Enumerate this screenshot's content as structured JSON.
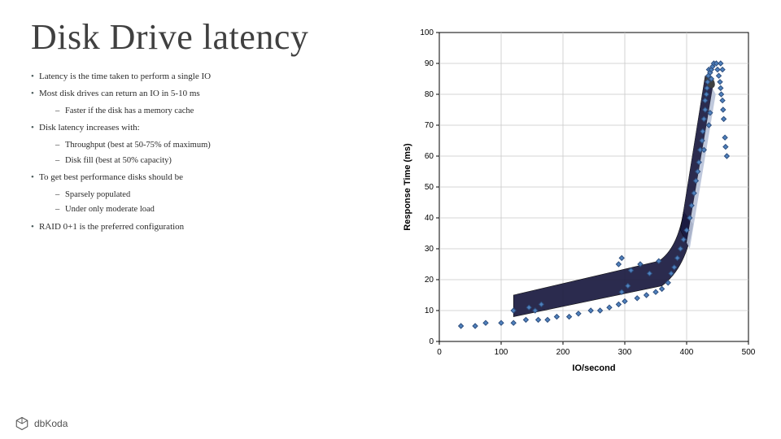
{
  "title": "Disk Drive latency",
  "bullets": [
    {
      "level": 1,
      "text": "Latency is the time taken to perform a single IO"
    },
    {
      "level": 1,
      "text": "Most disk drives can return an IO in 5-10 ms"
    },
    {
      "level": 2,
      "text": "Faster if the disk has a memory cache"
    },
    {
      "level": 1,
      "text": "Disk latency increases with:"
    },
    {
      "level": 2,
      "text": "Throughput (best at 50-75% of maximum)"
    },
    {
      "level": 2,
      "text": "Disk fill (best at 50% capacity)"
    },
    {
      "level": 1,
      "text": "To get best performance disks should be"
    },
    {
      "level": 2,
      "text": "Sparsely populated"
    },
    {
      "level": 2,
      "text": "Under only moderate load"
    },
    {
      "level": 1,
      "text": "RAID 0+1 is the preferred configuration"
    }
  ],
  "footer": {
    "brand": "dbKoda"
  },
  "chart": {
    "type": "scatter",
    "xlabel": "IO/second",
    "ylabel": "Response Time (ms)",
    "xlim": [
      0,
      500
    ],
    "ylim": [
      0,
      100
    ],
    "xtick_step": 100,
    "ytick_step": 10,
    "background_color": "#ffffff",
    "grid_color": "#c8c8c8",
    "axis_color": "#000000",
    "tick_fontsize": 10,
    "label_fontsize": 11,
    "label_fontweight": "bold",
    "marker": {
      "shape": "diamond",
      "size": 6,
      "fill": "#4f81bd",
      "stroke": "#2e4e7e",
      "stroke_width": 1
    },
    "points": [
      [
        35,
        5
      ],
      [
        58,
        5
      ],
      [
        75,
        6
      ],
      [
        100,
        6
      ],
      [
        120,
        6
      ],
      [
        140,
        7
      ],
      [
        160,
        7
      ],
      [
        175,
        7
      ],
      [
        120,
        10
      ],
      [
        145,
        11
      ],
      [
        165,
        12
      ],
      [
        155,
        10
      ],
      [
        190,
        8
      ],
      [
        210,
        8
      ],
      [
        225,
        9
      ],
      [
        245,
        10
      ],
      [
        260,
        10
      ],
      [
        275,
        11
      ],
      [
        290,
        12
      ],
      [
        300,
        13
      ],
      [
        295,
        16
      ],
      [
        305,
        18
      ],
      [
        320,
        14
      ],
      [
        335,
        15
      ],
      [
        350,
        16
      ],
      [
        360,
        17
      ],
      [
        370,
        19
      ],
      [
        375,
        22
      ],
      [
        380,
        24
      ],
      [
        385,
        27
      ],
      [
        310,
        23
      ],
      [
        290,
        25
      ],
      [
        295,
        27
      ],
      [
        325,
        25
      ],
      [
        340,
        22
      ],
      [
        355,
        26
      ],
      [
        390,
        30
      ],
      [
        395,
        33
      ],
      [
        400,
        36
      ],
      [
        405,
        40
      ],
      [
        408,
        44
      ],
      [
        412,
        48
      ],
      [
        415,
        52
      ],
      [
        418,
        55
      ],
      [
        420,
        58
      ],
      [
        422,
        62
      ],
      [
        425,
        65
      ],
      [
        426,
        68
      ],
      [
        428,
        62
      ],
      [
        428,
        72
      ],
      [
        430,
        75
      ],
      [
        430,
        78
      ],
      [
        432,
        80
      ],
      [
        433,
        82
      ],
      [
        434,
        84
      ],
      [
        435,
        86
      ],
      [
        436,
        70
      ],
      [
        438,
        74
      ],
      [
        436,
        88
      ],
      [
        438,
        87
      ],
      [
        440,
        88
      ],
      [
        440,
        85
      ],
      [
        442,
        89
      ],
      [
        444,
        90
      ],
      [
        448,
        90
      ],
      [
        450,
        88
      ],
      [
        452,
        86
      ],
      [
        454,
        84
      ],
      [
        455,
        82
      ],
      [
        456,
        80
      ],
      [
        458,
        78
      ],
      [
        459,
        75
      ],
      [
        460,
        72
      ],
      [
        455,
        90
      ],
      [
        458,
        88
      ],
      [
        462,
        66
      ],
      [
        463,
        63
      ],
      [
        465,
        60
      ]
    ],
    "shape": {
      "comment": "hockey-stick overlay",
      "stick_color_dark": "#1a1a40",
      "stick_color_light": "#b8c2d8",
      "handle_color": "#404040"
    }
  }
}
